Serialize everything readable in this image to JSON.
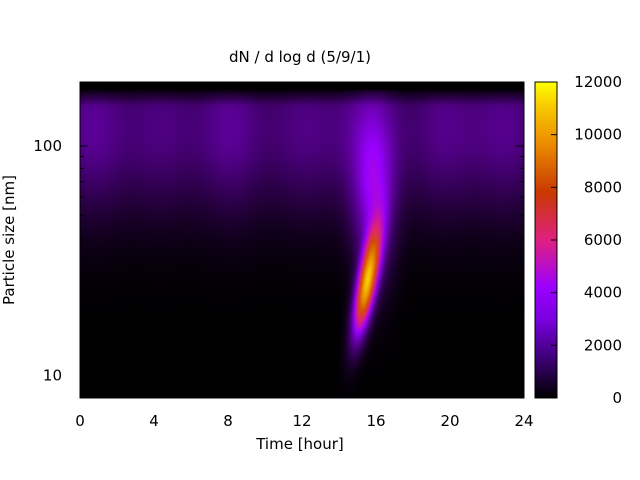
{
  "chart_data": {
    "type": "heatmap",
    "title": "dN / d log d (5/9/1)",
    "xlabel": "Time [hour]",
    "ylabel": "Particle size [nm]",
    "x_range": [
      0,
      24
    ],
    "x_ticks": [
      0,
      4,
      8,
      12,
      16,
      20,
      24
    ],
    "y_scale": "log",
    "y_range_nm": [
      8,
      190
    ],
    "y_ticks": [
      10,
      100
    ],
    "colorbar": {
      "range": [
        0,
        12000
      ],
      "ticks": [
        0,
        2000,
        4000,
        6000,
        8000,
        10000,
        12000
      ],
      "palette": [
        "#000000",
        "#6a00b0",
        "#9a00ff",
        "#e02080",
        "#d05000",
        "#f0a000",
        "#ffff00"
      ]
    },
    "grid": false,
    "features": {
      "background_band": {
        "center_size_nm": 120,
        "peak_value": 2600,
        "time_range": [
          0,
          24
        ]
      },
      "nucleation_burst": {
        "center_time_hour": 15.5,
        "center_size_nm": 25,
        "peak_value": 10000,
        "time_range": [
          14.5,
          17.5
        ],
        "size_range_nm": [
          12,
          100
        ]
      }
    }
  }
}
